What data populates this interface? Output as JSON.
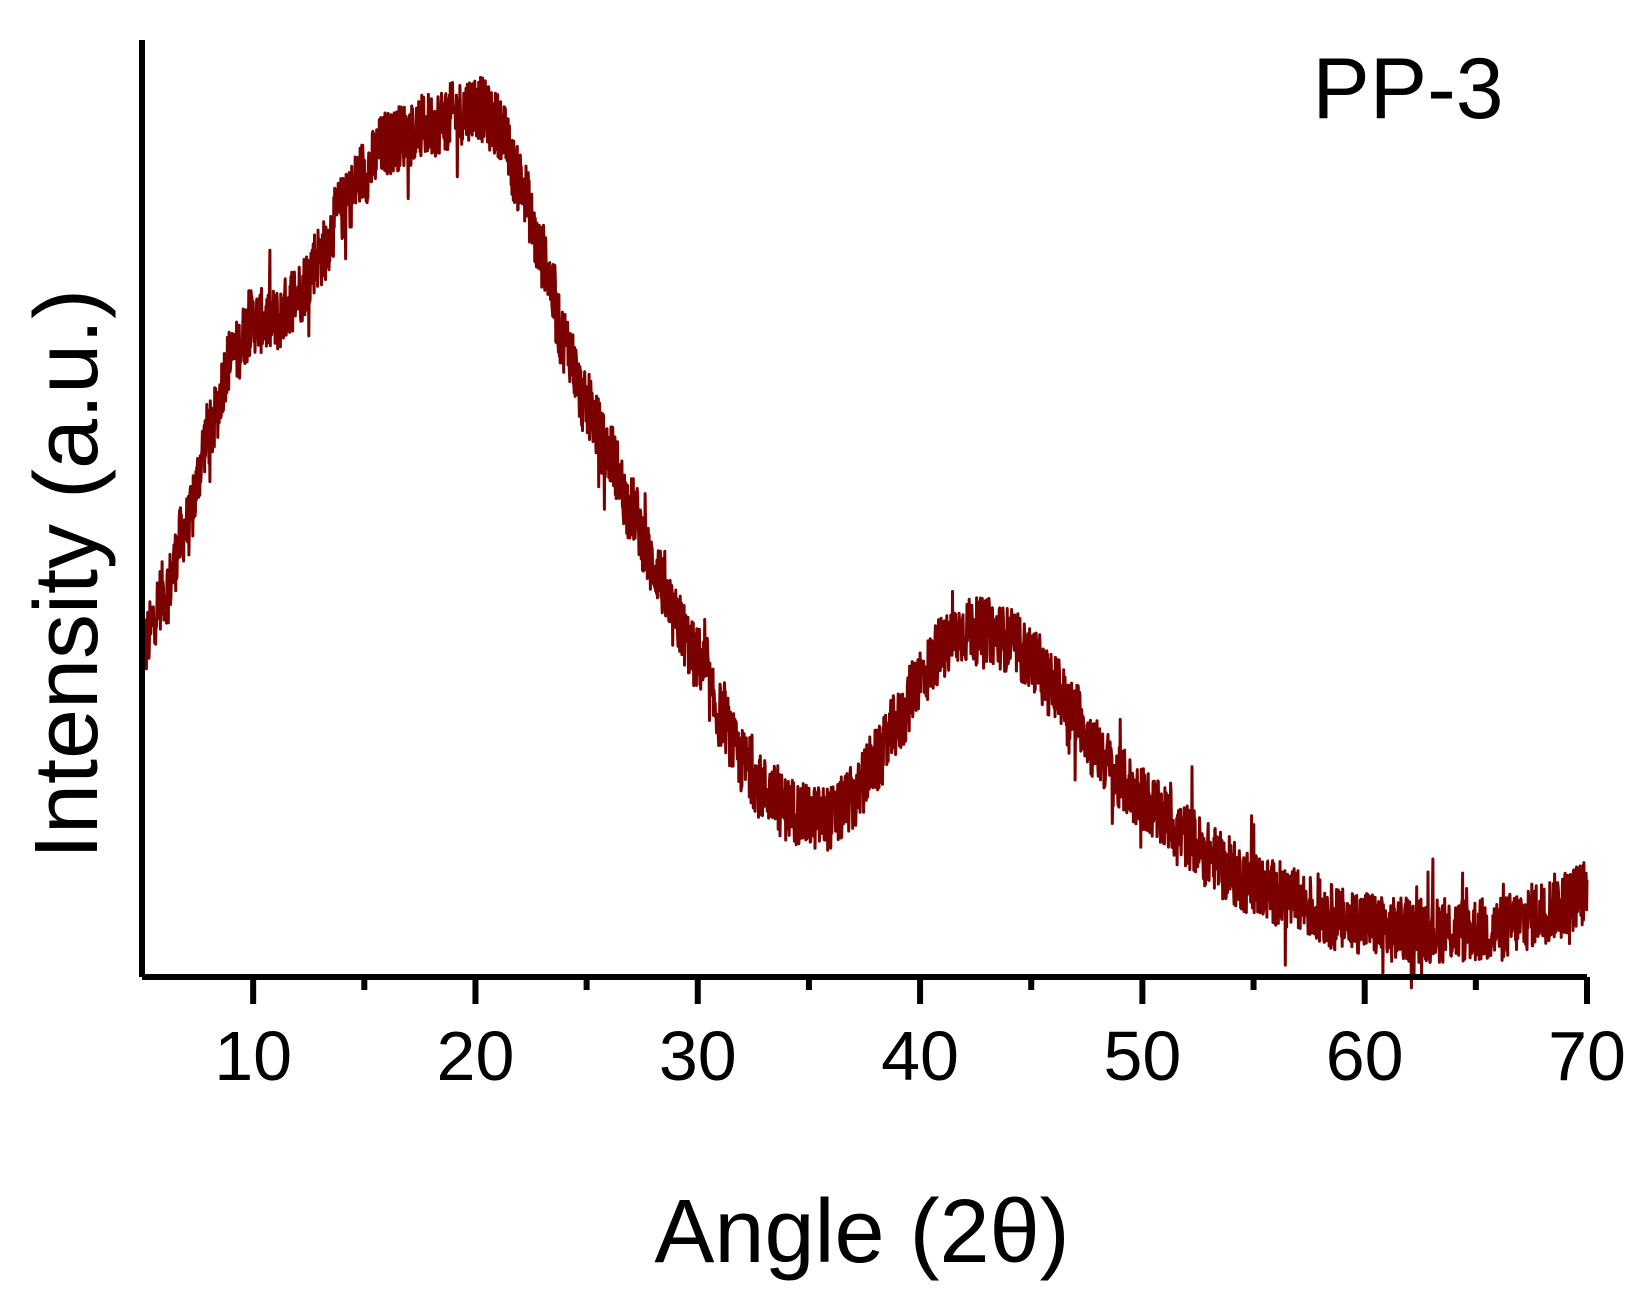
{
  "chart_data": {
    "type": "line",
    "title": "",
    "xlabel": "Angle (2θ)",
    "ylabel": "Intensity (a.u.)",
    "annotation": "PP-3",
    "xlim": [
      5,
      70
    ],
    "ylim": [
      0,
      100
    ],
    "x_ticks": [
      10,
      20,
      30,
      40,
      50,
      60,
      70
    ],
    "x_minor_ticks": [
      15,
      25,
      35,
      45,
      55,
      65
    ],
    "y_ticks_shown": false,
    "grid": false,
    "legend": "none",
    "series_color": "#7b0000",
    "series": [
      {
        "points": [
          [
            5,
            35
          ],
          [
            6,
            41
          ],
          [
            7,
            48
          ],
          [
            8,
            58
          ],
          [
            9,
            66
          ],
          [
            10,
            70
          ],
          [
            11,
            70
          ],
          [
            12,
            73
          ],
          [
            13,
            77
          ],
          [
            14,
            82
          ],
          [
            15,
            86
          ],
          [
            16,
            89
          ],
          [
            17,
            90
          ],
          [
            18,
            91
          ],
          [
            19,
            92
          ],
          [
            20,
            93
          ],
          [
            21,
            91
          ],
          [
            22,
            85
          ],
          [
            23,
            77
          ],
          [
            24,
            68
          ],
          [
            25,
            61
          ],
          [
            26,
            56
          ],
          [
            27,
            50
          ],
          [
            28,
            44
          ],
          [
            29,
            38
          ],
          [
            30,
            34
          ],
          [
            31,
            28
          ],
          [
            32,
            23
          ],
          [
            33,
            20
          ],
          [
            34,
            18
          ],
          [
            35,
            17
          ],
          [
            36,
            17
          ],
          [
            37,
            19
          ],
          [
            38,
            23
          ],
          [
            39,
            27
          ],
          [
            40,
            32
          ],
          [
            41,
            35
          ],
          [
            42,
            37
          ],
          [
            43,
            37
          ],
          [
            44,
            36
          ],
          [
            45,
            34
          ],
          [
            46,
            31
          ],
          [
            47,
            28
          ],
          [
            48,
            24
          ],
          [
            49,
            21
          ],
          [
            50,
            19
          ],
          [
            51,
            17
          ],
          [
            52,
            15
          ],
          [
            53,
            13
          ],
          [
            54,
            11
          ],
          [
            55,
            10
          ],
          [
            56,
            9
          ],
          [
            57,
            8
          ],
          [
            58,
            7
          ],
          [
            59,
            6
          ],
          [
            60,
            6
          ],
          [
            61,
            5
          ],
          [
            62,
            5
          ],
          [
            63,
            5
          ],
          [
            64,
            5
          ],
          [
            65,
            5
          ],
          [
            66,
            5
          ],
          [
            67,
            6
          ],
          [
            68,
            7
          ],
          [
            69,
            8
          ],
          [
            70,
            9
          ]
        ]
      }
    ]
  }
}
